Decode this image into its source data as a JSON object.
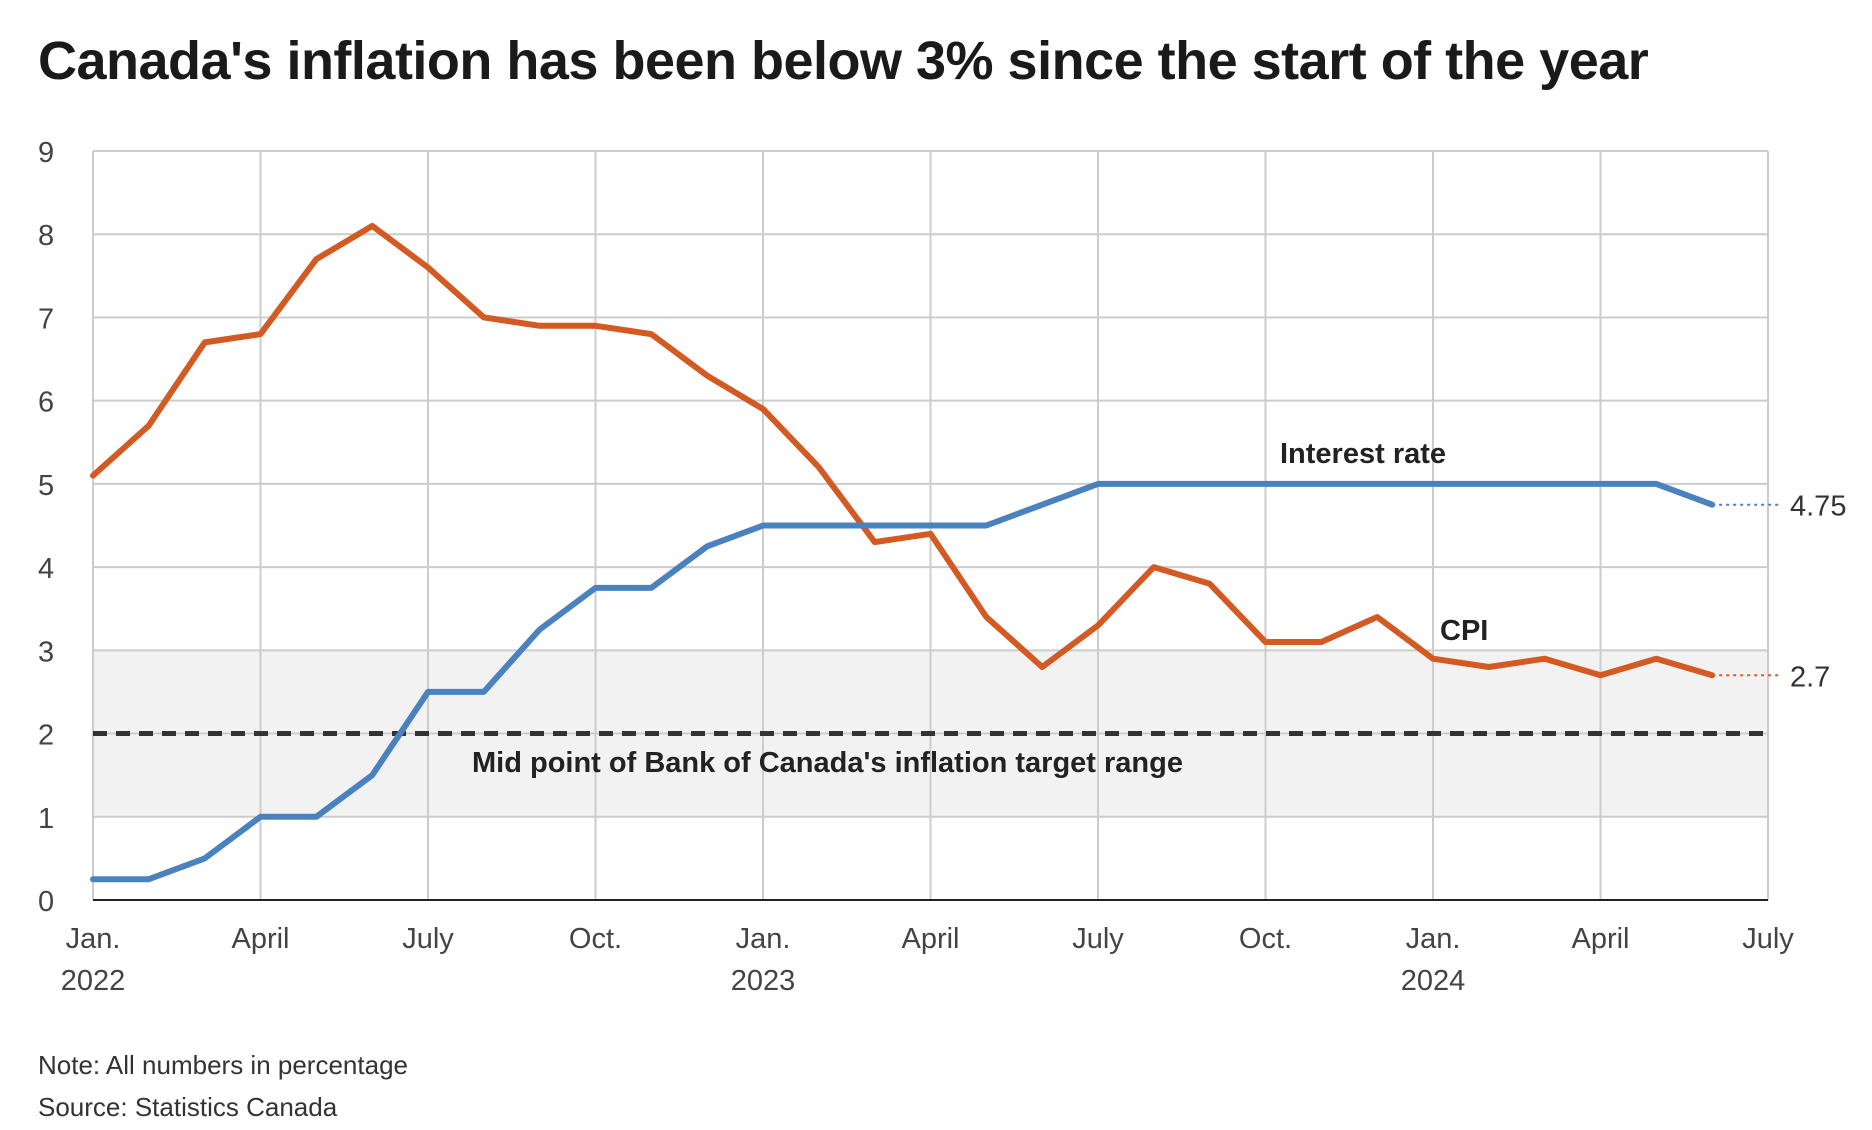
{
  "title": "Canada's inflation has been below 3% since the start of the year",
  "note": "Note: All numbers in percentage",
  "source": "Source: Statistics Canada",
  "colors": {
    "cpi": "#d45a24",
    "interest": "#4a82bf",
    "target_band": "#f2f2f2",
    "target_line": "#333333",
    "grid": "#cccccc"
  },
  "chart_data": {
    "type": "line",
    "title": "Canada's inflation has been below 3% since the start of the year",
    "xlabel": "",
    "ylabel": "",
    "ylim": [
      0,
      9
    ],
    "yticks": [
      0,
      1,
      2,
      3,
      4,
      5,
      6,
      7,
      8,
      9
    ],
    "grid": true,
    "x_range": [
      "2022-01",
      "2024-07"
    ],
    "x_ticks": [
      {
        "month": "2022-01",
        "label": "Jan.",
        "year": "2022"
      },
      {
        "month": "2022-04",
        "label": "April",
        "year": ""
      },
      {
        "month": "2022-07",
        "label": "July",
        "year": ""
      },
      {
        "month": "2022-10",
        "label": "Oct.",
        "year": ""
      },
      {
        "month": "2023-01",
        "label": "Jan.",
        "year": "2023"
      },
      {
        "month": "2023-04",
        "label": "April",
        "year": ""
      },
      {
        "month": "2023-07",
        "label": "July",
        "year": ""
      },
      {
        "month": "2023-10",
        "label": "Oct.",
        "year": ""
      },
      {
        "month": "2024-01",
        "label": "Jan.",
        "year": "2024"
      },
      {
        "month": "2024-04",
        "label": "April",
        "year": ""
      },
      {
        "month": "2024-07",
        "label": "July",
        "year": ""
      }
    ],
    "x": [
      "2022-01",
      "2022-02",
      "2022-03",
      "2022-04",
      "2022-05",
      "2022-06",
      "2022-07",
      "2022-08",
      "2022-09",
      "2022-10",
      "2022-11",
      "2022-12",
      "2023-01",
      "2023-02",
      "2023-03",
      "2023-04",
      "2023-05",
      "2023-06",
      "2023-07",
      "2023-08",
      "2023-09",
      "2023-10",
      "2023-11",
      "2023-12",
      "2024-01",
      "2024-02",
      "2024-03",
      "2024-04",
      "2024-05",
      "2024-06"
    ],
    "series": [
      {
        "name": "CPI",
        "color": "#d45a24",
        "values": [
          5.1,
          5.7,
          6.7,
          6.8,
          7.7,
          8.1,
          7.6,
          7.0,
          6.9,
          6.9,
          6.8,
          6.3,
          5.9,
          5.2,
          4.3,
          4.4,
          3.4,
          2.8,
          3.3,
          4.0,
          3.8,
          3.1,
          3.1,
          3.4,
          2.9,
          2.8,
          2.9,
          2.7,
          2.9,
          2.7
        ],
        "end_label": "2.7"
      },
      {
        "name": "Interest rate",
        "color": "#4a82bf",
        "values": [
          0.25,
          0.25,
          0.5,
          1.0,
          1.0,
          1.5,
          2.5,
          2.5,
          3.25,
          3.75,
          3.75,
          4.25,
          4.5,
          4.5,
          4.5,
          4.5,
          4.5,
          4.75,
          5.0,
          5.0,
          5.0,
          5.0,
          5.0,
          5.0,
          5.0,
          5.0,
          5.0,
          5.0,
          5.0,
          4.75
        ],
        "end_label": "4.75"
      }
    ],
    "target_band": [
      1,
      3
    ],
    "target_midpoint": 2,
    "annotations": {
      "target": "Mid point of Bank of Canada's inflation target range",
      "interest": "Interest rate",
      "cpi": "CPI"
    }
  }
}
